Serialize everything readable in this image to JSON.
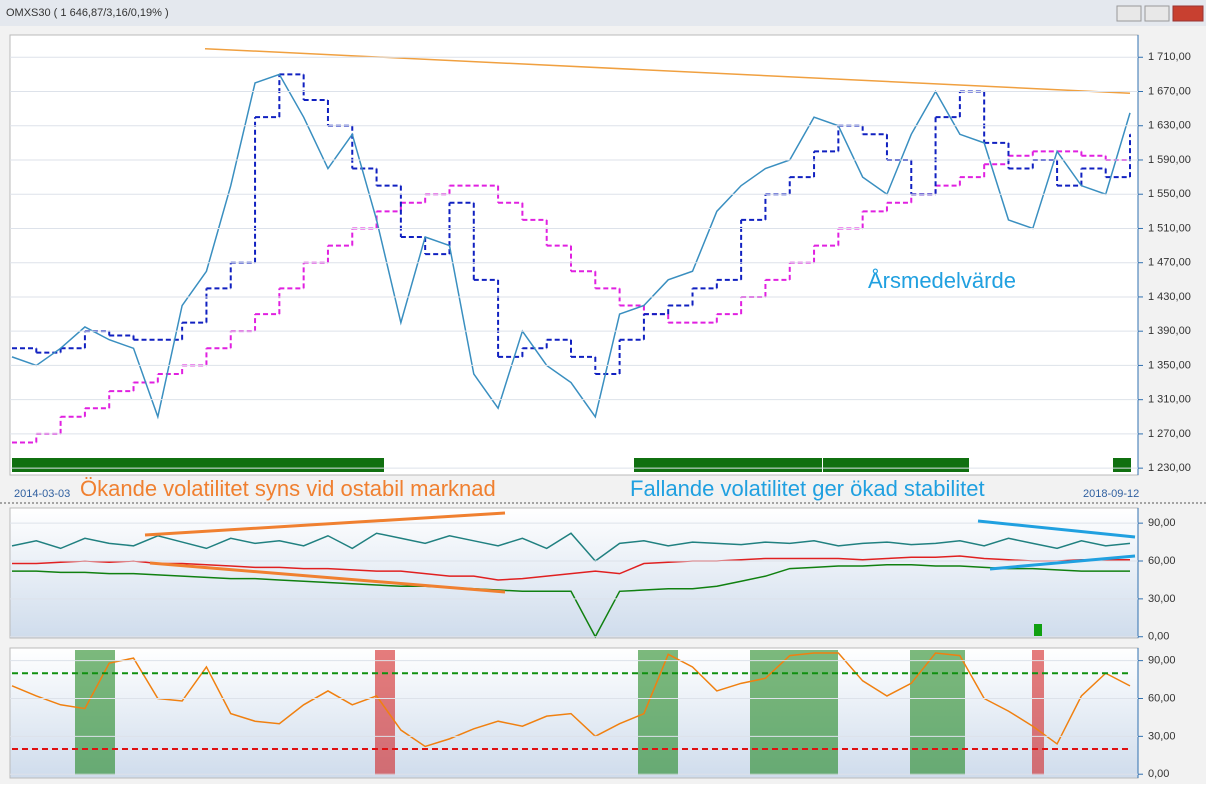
{
  "window_title": "OMXS30 ( 1 646,87/3,16/0,19% )",
  "chart_data": [
    {
      "type": "line",
      "xlabels": [
        "2014-03-03",
        "2018-09-12"
      ],
      "annotations": [
        "Årsmedelvärde",
        "Ökande volatilitet syns vid ostabil marknad",
        "Fallande volatilitet ger ökad stabilitet"
      ],
      "ylim": [
        1222,
        1736
      ],
      "yticks": [
        {
          "value": 1230,
          "label": "1 230,00"
        },
        {
          "value": 1270,
          "label": "1 270,00"
        },
        {
          "value": 1310,
          "label": "1 310,00"
        },
        {
          "value": 1350,
          "label": "1 350,00"
        },
        {
          "value": 1390,
          "label": "1 390,00"
        },
        {
          "value": 1430,
          "label": "1 430,00"
        },
        {
          "value": 1470,
          "label": "1 470,00"
        },
        {
          "value": 1510,
          "label": "1 510,00"
        },
        {
          "value": 1550,
          "label": "1 550,00"
        },
        {
          "value": 1590,
          "label": "1 590,00"
        },
        {
          "value": 1630,
          "label": "1 630,00"
        },
        {
          "value": 1670,
          "label": "1 670,00"
        },
        {
          "value": 1710,
          "label": "1 710,00"
        }
      ],
      "grid": true,
      "trendline": {
        "color": "#f0a040",
        "values": [
          1720,
          1668
        ]
      },
      "series": [
        {
          "color": "#3a8fc0",
          "values": [
            1360,
            1350,
            1370,
            1395,
            1380,
            1370,
            1290,
            1420,
            1460,
            1560,
            1680,
            1690,
            1640,
            1580,
            1620,
            1520,
            1400,
            1500,
            1490,
            1340,
            1300,
            1390,
            1350,
            1330,
            1290,
            1410,
            1420,
            1450,
            1460,
            1530,
            1560,
            1580,
            1590,
            1640,
            1630,
            1570,
            1550,
            1620,
            1670,
            1620,
            1610,
            1520,
            1510,
            1600,
            1560,
            1550,
            1645
          ]
        },
        {
          "color": "#1020c0",
          "step": true,
          "dash": true,
          "values": [
            1370,
            1365,
            1370,
            1390,
            1385,
            1380,
            1380,
            1400,
            1440,
            1470,
            1640,
            1690,
            1660,
            1630,
            1580,
            1560,
            1500,
            1480,
            1540,
            1450,
            1360,
            1370,
            1380,
            1360,
            1340,
            1380,
            1410,
            1420,
            1440,
            1450,
            1520,
            1550,
            1570,
            1600,
            1630,
            1620,
            1590,
            1550,
            1640,
            1670,
            1610,
            1580,
            1590,
            1560,
            1580,
            1570,
            1620
          ]
        },
        {
          "color": "#e020e0",
          "step": true,
          "dash": true,
          "values": [
            1260,
            1270,
            1290,
            1300,
            1320,
            1330,
            1340,
            1350,
            1370,
            1390,
            1410,
            1440,
            1470,
            1490,
            1510,
            1530,
            1540,
            1550,
            1560,
            1560,
            1540,
            1520,
            1490,
            1460,
            1440,
            1420,
            1410,
            1400,
            1400,
            1410,
            1430,
            1450,
            1470,
            1490,
            1510,
            1530,
            1540,
            1550,
            1560,
            1570,
            1585,
            1595,
            1600,
            1600,
            1595,
            1590,
            1590
          ]
        }
      ]
    },
    {
      "type": "line",
      "ylim": [
        -1,
        102
      ],
      "yticks": [
        {
          "value": 0,
          "label": "0,00"
        },
        {
          "value": 30,
          "label": "30,00"
        },
        {
          "value": 60,
          "label": "60,00"
        },
        {
          "value": 90,
          "label": "90,00"
        }
      ],
      "grid": true,
      "series": [
        {
          "color": "#208080",
          "values": [
            72,
            76,
            70,
            78,
            74,
            72,
            80,
            75,
            70,
            78,
            74,
            76,
            72,
            80,
            70,
            82,
            78,
            74,
            80,
            76,
            72,
            78,
            70,
            82,
            60,
            74,
            76,
            72,
            75,
            74,
            73,
            75,
            74,
            76,
            72,
            74,
            75,
            73,
            74,
            76,
            72,
            78,
            74,
            70,
            76,
            72,
            74
          ]
        },
        {
          "color": "#e02020",
          "values": [
            58,
            58,
            59,
            60,
            59,
            60,
            58,
            58,
            57,
            56,
            55,
            55,
            54,
            54,
            53,
            52,
            52,
            50,
            48,
            48,
            45,
            46,
            48,
            50,
            52,
            50,
            58,
            59,
            60,
            60,
            61,
            62,
            62,
            62,
            62,
            61,
            62,
            63,
            63,
            64,
            62,
            61,
            60,
            60,
            61,
            61,
            61
          ]
        },
        {
          "color": "#108010",
          "values": [
            52,
            52,
            51,
            51,
            50,
            50,
            49,
            48,
            47,
            46,
            46,
            45,
            44,
            43,
            42,
            41,
            40,
            40,
            39,
            38,
            37,
            36,
            36,
            36,
            0,
            36,
            37,
            38,
            38,
            40,
            44,
            48,
            54,
            55,
            56,
            56,
            57,
            57,
            56,
            56,
            55,
            54,
            54,
            53,
            52,
            52,
            52
          ]
        }
      ]
    },
    {
      "type": "line",
      "ylim": [
        -3,
        100
      ],
      "yticks": [
        {
          "value": 0,
          "label": "0,00"
        },
        {
          "value": 30,
          "label": "30,00"
        },
        {
          "value": 60,
          "label": "60,00"
        },
        {
          "value": 90,
          "label": "90,00"
        }
      ],
      "grid": true,
      "levels": [
        {
          "value": 80,
          "color": "#109010"
        },
        {
          "value": 20,
          "color": "#e01010"
        }
      ],
      "series": [
        {
          "color": "#f08010",
          "values": [
            70,
            62,
            55,
            52,
            88,
            92,
            60,
            58,
            85,
            48,
            42,
            40,
            55,
            66,
            55,
            62,
            35,
            22,
            28,
            36,
            42,
            38,
            46,
            48,
            30,
            40,
            48,
            95,
            85,
            66,
            72,
            76,
            94,
            96,
            96,
            74,
            62,
            72,
            96,
            94,
            60,
            50,
            38,
            24,
            62,
            80,
            70
          ]
        }
      ]
    }
  ]
}
